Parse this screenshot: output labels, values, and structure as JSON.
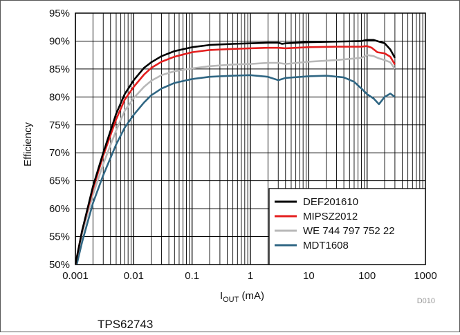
{
  "chart_data": {
    "type": "line",
    "xscale": "log",
    "xlim": [
      0.001,
      1000
    ],
    "ylim": [
      50,
      95
    ],
    "xticks": [
      "0.001",
      "0.01",
      "0.1",
      "1",
      "10",
      "100",
      "1000"
    ],
    "yticks": [
      "50%",
      "55%",
      "60%",
      "65%",
      "70%",
      "75%",
      "80%",
      "85%",
      "90%",
      "95%"
    ],
    "ylabel": "Efficiency",
    "xlabel_main": "I",
    "xlabel_sub": "OUT",
    "xlabel_unit": " (mA)",
    "grid": true,
    "legend_position": "bottom-right",
    "series": [
      {
        "name": "DEF201610",
        "color": "#000000",
        "points": [
          [
            0.001,
            50
          ],
          [
            0.0013,
            56
          ],
          [
            0.002,
            64
          ],
          [
            0.003,
            70
          ],
          [
            0.005,
            77
          ],
          [
            0.007,
            80.5
          ],
          [
            0.01,
            83
          ],
          [
            0.015,
            85.2
          ],
          [
            0.02,
            86.2
          ],
          [
            0.03,
            87.3
          ],
          [
            0.05,
            88.2
          ],
          [
            0.1,
            88.9
          ],
          [
            0.2,
            89.3
          ],
          [
            0.5,
            89.5
          ],
          [
            1,
            89.6
          ],
          [
            2,
            89.7
          ],
          [
            3,
            89.7
          ],
          [
            3.5,
            89.5
          ],
          [
            4,
            89.6
          ],
          [
            10,
            89.8
          ],
          [
            30,
            89.9
          ],
          [
            80,
            90.0
          ],
          [
            100,
            90.2
          ],
          [
            130,
            90.2
          ],
          [
            160,
            89.9
          ],
          [
            200,
            89.6
          ],
          [
            250,
            88.5
          ],
          [
            300,
            87.0
          ]
        ]
      },
      {
        "name": "MIPSZ2012",
        "color": "#e41e1e",
        "points": [
          [
            0.001,
            50
          ],
          [
            0.0013,
            56
          ],
          [
            0.002,
            63.5
          ],
          [
            0.003,
            69.5
          ],
          [
            0.005,
            76
          ],
          [
            0.007,
            79.5
          ],
          [
            0.01,
            81.8
          ],
          [
            0.015,
            84
          ],
          [
            0.02,
            85.2
          ],
          [
            0.03,
            86.3
          ],
          [
            0.05,
            87.2
          ],
          [
            0.1,
            88
          ],
          [
            0.2,
            88.4
          ],
          [
            0.5,
            88.6
          ],
          [
            1,
            88.7
          ],
          [
            2,
            88.8
          ],
          [
            3,
            88.8
          ],
          [
            4,
            88.7
          ],
          [
            10,
            88.9
          ],
          [
            30,
            89.0
          ],
          [
            80,
            89.0
          ],
          [
            100,
            89.1
          ],
          [
            120,
            88.8
          ],
          [
            150,
            88.0
          ],
          [
            200,
            87.8
          ],
          [
            250,
            87.2
          ],
          [
            300,
            85.8
          ]
        ]
      },
      {
        "name": "WE 744 797 752 22",
        "color": "#b8b8b8",
        "points": [
          [
            0.001,
            50
          ],
          [
            0.0013,
            55.5
          ],
          [
            0.002,
            62.5
          ],
          [
            0.003,
            68
          ],
          [
            0.005,
            74
          ],
          [
            0.007,
            77.5
          ],
          [
            0.01,
            79.8
          ],
          [
            0.015,
            81.8
          ],
          [
            0.02,
            82.9
          ],
          [
            0.03,
            83.9
          ],
          [
            0.05,
            84.6
          ],
          [
            0.1,
            85.1
          ],
          [
            0.2,
            85.5
          ],
          [
            0.5,
            85.8
          ],
          [
            1,
            85.9
          ],
          [
            2,
            86.1
          ],
          [
            3,
            86.1
          ],
          [
            4,
            85.9
          ],
          [
            10,
            86.3
          ],
          [
            30,
            86.6
          ],
          [
            80,
            87.0
          ],
          [
            100,
            87.5
          ],
          [
            130,
            87.3
          ],
          [
            160,
            86.9
          ],
          [
            200,
            86.6
          ],
          [
            250,
            86.2
          ],
          [
            300,
            85.0
          ]
        ]
      },
      {
        "name": "MDT1608",
        "color": "#2f6683",
        "points": [
          [
            0.001,
            49
          ],
          [
            0.0013,
            54
          ],
          [
            0.002,
            61
          ],
          [
            0.003,
            66
          ],
          [
            0.005,
            71.5
          ],
          [
            0.007,
            74.5
          ],
          [
            0.01,
            76.8
          ],
          [
            0.015,
            79
          ],
          [
            0.02,
            80.3
          ],
          [
            0.03,
            81.5
          ],
          [
            0.05,
            82.5
          ],
          [
            0.1,
            83.2
          ],
          [
            0.2,
            83.6
          ],
          [
            0.5,
            83.8
          ],
          [
            1,
            83.9
          ],
          [
            2,
            83.6
          ],
          [
            3,
            83.0
          ],
          [
            4,
            83.4
          ],
          [
            10,
            83.7
          ],
          [
            20,
            83.8
          ],
          [
            40,
            83.5
          ],
          [
            60,
            82.7
          ],
          [
            80,
            81.5
          ],
          [
            100,
            80.5
          ],
          [
            130,
            79.7
          ],
          [
            160,
            78.7
          ],
          [
            200,
            80.0
          ],
          [
            250,
            80.6
          ],
          [
            300,
            80.0
          ]
        ]
      }
    ]
  },
  "doc_code": "D010",
  "part_number": "TPS62743"
}
